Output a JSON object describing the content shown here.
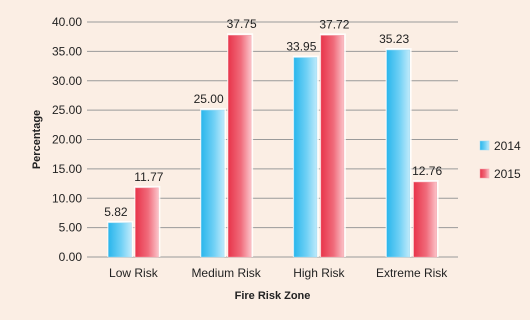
{
  "chart_data": {
    "type": "bar",
    "categories": [
      "Low Risk",
      "Medium Risk",
      "High Risk",
      "Extreme Risk"
    ],
    "series": [
      {
        "name": "2014",
        "values": [
          5.82,
          25.0,
          33.95,
          35.23
        ],
        "labels": [
          "5.82",
          "25.00",
          "33.95",
          "35.23"
        ]
      },
      {
        "name": "2015",
        "values": [
          11.77,
          37.75,
          37.72,
          12.76
        ],
        "labels": [
          "11.77",
          "37.75",
          "37.72",
          "12.76"
        ]
      }
    ],
    "xlabel": "Fire Risk Zone",
    "ylabel": "Percentage",
    "ylim": [
      0,
      40
    ],
    "yticks": [
      "0.00",
      "5.00",
      "10.00",
      "15.00",
      "20.00",
      "25.00",
      "30.00",
      "35.00",
      "40.00"
    ],
    "grid": true,
    "legend_position": "right",
    "colors": {
      "series_2014": "#29b6ec",
      "series_2014_light": "#bfeafb",
      "series_2015": "#e8344a",
      "series_2015_light": "#fbc3c9",
      "background": "#fbeee4",
      "grid": "#9a9a9a"
    }
  }
}
